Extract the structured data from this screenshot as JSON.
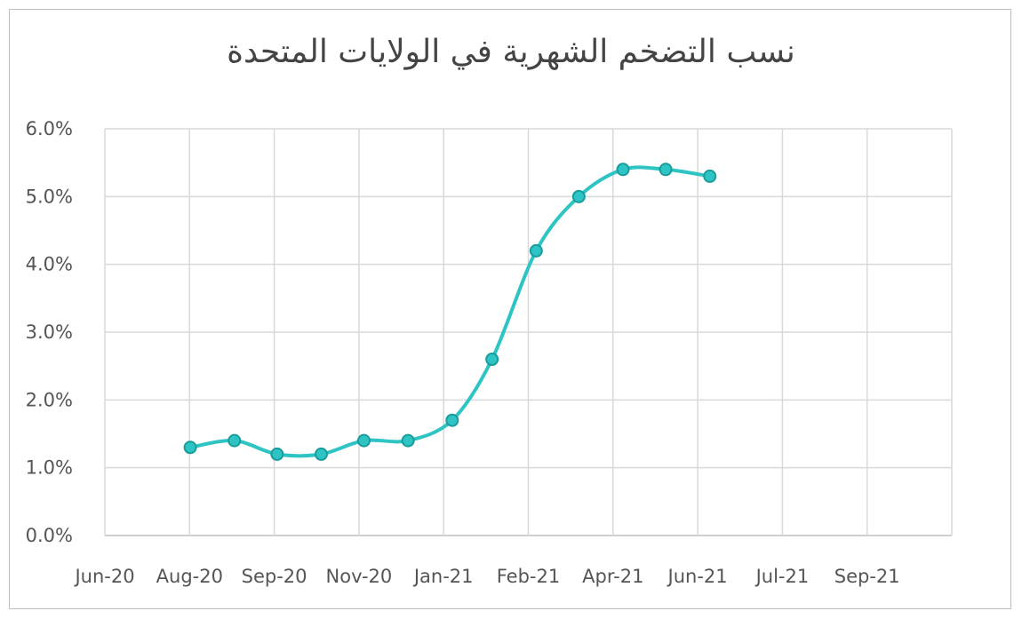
{
  "chart_data": {
    "type": "line",
    "title": "نسب التضخم الشهرية في الولايات المتحدة",
    "x_tick_labels": [
      "Jun-20",
      "Aug-20",
      "Sep-20",
      "Nov-20",
      "Jan-21",
      "Feb-21",
      "Apr-21",
      "Jun-21",
      "Jul-21",
      "Sep-21"
    ],
    "y_tick_labels": [
      "0.0%",
      "1.0%",
      "2.0%",
      "3.0%",
      "4.0%",
      "5.0%",
      "6.0%"
    ],
    "ylim": [
      0,
      6
    ],
    "grid": true,
    "legend": "none",
    "series": [
      {
        "color": "#2ec4c4",
        "points": [
          {
            "x": "2020-07-31",
            "y": 1.3
          },
          {
            "x": "2020-08-31",
            "y": 1.4
          },
          {
            "x": "2020-09-30",
            "y": 1.2
          },
          {
            "x": "2020-10-31",
            "y": 1.2
          },
          {
            "x": "2020-11-30",
            "y": 1.4
          },
          {
            "x": "2020-12-31",
            "y": 1.4
          },
          {
            "x": "2021-01-31",
            "y": 1.7
          },
          {
            "x": "2021-02-28",
            "y": 2.6
          },
          {
            "x": "2021-03-31",
            "y": 4.2
          },
          {
            "x": "2021-04-30",
            "y": 5.0
          },
          {
            "x": "2021-05-31",
            "y": 5.4
          },
          {
            "x": "2021-06-30",
            "y": 5.4
          },
          {
            "x": "2021-07-31",
            "y": 5.3
          }
        ]
      }
    ]
  }
}
